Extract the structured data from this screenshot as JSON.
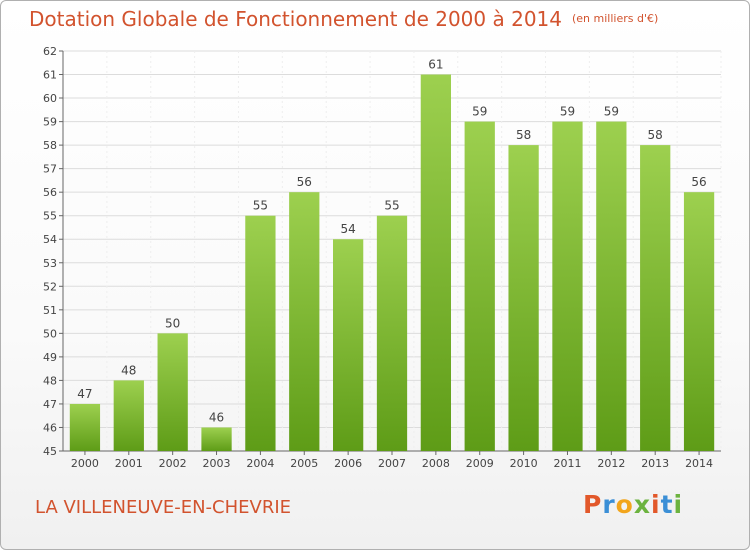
{
  "title": "Dotation Globale de Fonctionnement de 2000 à 2014",
  "unit": "(en milliers d'€)",
  "commune": "LA VILLENEUVE-EN-CHEVRIE",
  "logo": {
    "letters": [
      "P",
      "r",
      "o",
      "x",
      "i",
      "t",
      "i"
    ],
    "colors": [
      "#e2582a",
      "#3b8fd6",
      "#f2a51c",
      "#6cb33f",
      "#e2582a",
      "#3b8fd6",
      "#6cb33f"
    ]
  },
  "colors": {
    "bar_top": "#9dd04f",
    "bar_bottom": "#5e9c17",
    "title": "#d2532e",
    "grid": "#dcdcdc"
  },
  "chart_data": {
    "type": "bar",
    "title": "Dotation Globale de Fonctionnement de 2000 à 2014",
    "subtitle": "(en milliers d'€)",
    "categories": [
      "2000",
      "2001",
      "2002",
      "2003",
      "2004",
      "2005",
      "2006",
      "2007",
      "2008",
      "2009",
      "2010",
      "2011",
      "2012",
      "2013",
      "2014"
    ],
    "values": [
      47,
      48,
      50,
      46,
      55,
      56,
      54,
      55,
      61,
      59,
      58,
      59,
      59,
      58,
      56
    ],
    "ylim": [
      45,
      62
    ],
    "yticks": [
      45,
      46,
      47,
      48,
      49,
      50,
      51,
      52,
      53,
      54,
      55,
      56,
      57,
      58,
      59,
      60,
      61,
      62
    ],
    "grid": true,
    "xlabel": "",
    "ylabel": ""
  }
}
